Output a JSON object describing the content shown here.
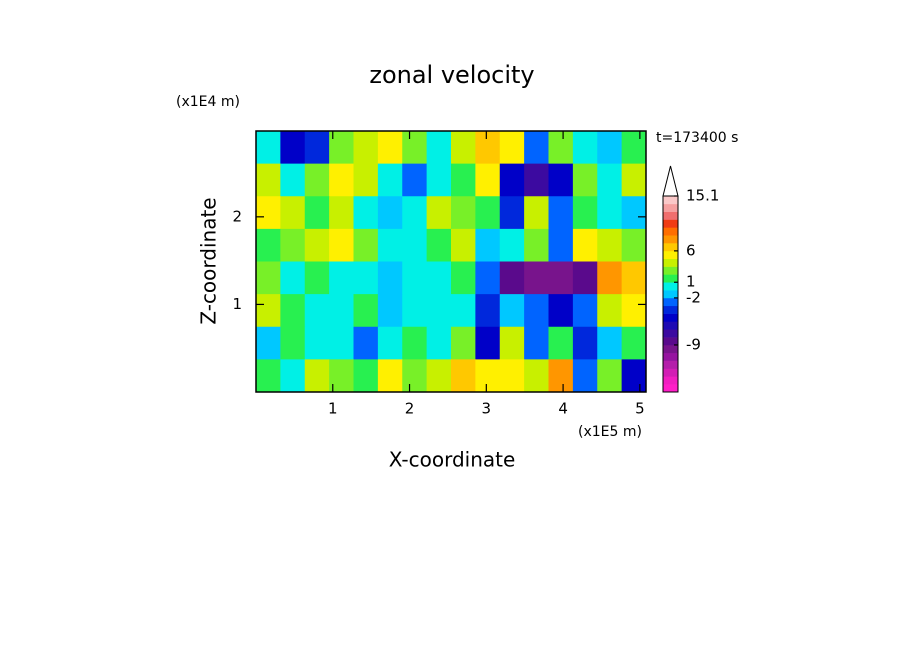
{
  "chart_data": {
    "type": "contour",
    "title": "zonal velocity",
    "x_label": "X-coordinate",
    "y_label": "Z-coordinate",
    "x_unit": "(x1E5 m)",
    "y_unit": "(x1E4 m)",
    "time_label": "t=173400 s",
    "xlim": [
      0,
      5.08
    ],
    "ylim": [
      0,
      2.98
    ],
    "xticks": [
      1,
      2,
      3,
      4,
      5
    ],
    "yticks": [
      1,
      2
    ],
    "levels": [
      -21,
      -19,
      -17,
      -15,
      -13,
      -11,
      -9,
      -8,
      -7,
      -6,
      -5,
      -4,
      -2,
      -1,
      1,
      2,
      3,
      4,
      6,
      7,
      8,
      9,
      11,
      12,
      13.5,
      15.1
    ],
    "colors": [
      "#ff1ec8",
      "#f01ec0",
      "#d21eb4",
      "#b41eaa",
      "#9614a0",
      "#78148c",
      "#5a0a8c",
      "#3c0aa0",
      "#1e0ab4",
      "#0000c8",
      "#0028dc",
      "#0064ff",
      "#00c8ff",
      "#00f0e6",
      "#28f050",
      "#78f028",
      "#c8f000",
      "#fff000",
      "#ffc800",
      "#ff9600",
      "#ff6e00",
      "#f03c14",
      "#f06e6e",
      "#f5a0a0",
      "#fac8c8"
    ],
    "cbar_ticks": [
      -9,
      -2,
      1,
      6,
      15.1
    ],
    "z": [
      [
        0,
        -6,
        -5,
        2,
        3,
        4,
        2,
        0,
        3,
        6,
        4,
        -3,
        2,
        -1,
        -2,
        1
      ],
      [
        3,
        0,
        2,
        4,
        3,
        -1,
        -3,
        0,
        1,
        4,
        -6,
        -8,
        -6,
        2,
        0,
        3
      ],
      [
        4,
        3,
        1,
        3,
        0,
        -2,
        0,
        3,
        2,
        1,
        -5,
        3,
        -4,
        1,
        -1,
        -2
      ],
      [
        1,
        2,
        3,
        4,
        2,
        -1,
        0,
        1,
        3,
        -2,
        0,
        2,
        -3,
        4,
        3,
        2
      ],
      [
        2,
        0,
        1,
        -1,
        0,
        -2,
        -1,
        0,
        1,
        -4,
        -9,
        -10,
        -11,
        -9,
        7,
        6
      ],
      [
        3,
        1,
        -1,
        0,
        1,
        -2,
        0,
        -1,
        0,
        -5,
        -2,
        -3,
        -6,
        -4,
        3,
        4
      ],
      [
        -2,
        1,
        0,
        -1,
        -3,
        -1,
        1,
        0,
        2,
        -6,
        3,
        -3,
        1,
        -5,
        -2,
        1
      ],
      [
        1,
        0,
        3,
        2,
        1,
        4,
        2,
        3,
        6,
        4,
        5,
        3,
        7,
        -4,
        2,
        -6
      ]
    ]
  }
}
